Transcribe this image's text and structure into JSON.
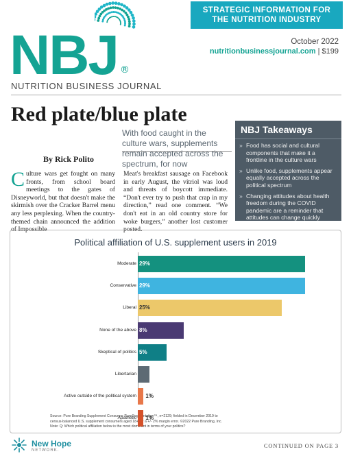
{
  "masthead": {
    "logo_text": "NBJ",
    "registered_mark": "®",
    "publication_name": "NUTRITION BUSINESS JOURNAL",
    "banner_line1": "STRATEGIC INFORMATION FOR",
    "banner_line2": "THE NUTRITION INDUSTRY",
    "issue_date": "October 2022",
    "website": "nutritionbusinessjournal.com",
    "separator": "|",
    "price": "$199",
    "brand_color": "#14a393",
    "banner_color": "#19a8bf"
  },
  "article": {
    "headline": "Red plate/blue plate",
    "deck": "With food caught in the culture wars, supplements remain accepted across the spectrum, for now",
    "byline": "By Rick Polito",
    "drop_cap": "C",
    "col1_text": "ulture wars get fought on many fronts, from school board meetings to the gates of Disneyworld, but that doesn't make the skirmish over the Cracker Barrel menu any less perplexing. When the country-themed chain announced the addition of Impossible",
    "col2_text": "Meat's breakfast sausage on Facebook in early August, the vitriol was loud and threats of boycott immediate. “Don't ever try to push that crap in my direction,” read one comment. “We don't eat in an old country store for woke burgers,” another lost customer posted."
  },
  "takeaways": {
    "title": "NBJ Takeaways",
    "bullet_glyph": "»",
    "items": [
      "Food has social and cultural components that make it a frontline in the culture wars",
      "Unlike food, supplements appear equally accepted across the political spectrum",
      "Changing attitudes about health freedom during the COVID pandemic are a reminder that attitudes can change quickly"
    ],
    "background_color": "#4e5b66"
  },
  "chart_data": {
    "type": "bar",
    "orientation": "horizontal",
    "title": "Political affiliation of U.S. supplement users in 2019",
    "categories": [
      "Moderate",
      "Conservative",
      "Liberal",
      "None of the above",
      "Skeptical of politics",
      "Libertarian",
      "Active outside of the political system",
      "Apathetic"
    ],
    "values": [
      29,
      29,
      25,
      8,
      5,
      2,
      1,
      1
    ],
    "value_labels": [
      "29%",
      "29%",
      "25%",
      "8%",
      "5%",
      "2%",
      "1%",
      "1%"
    ],
    "colors": [
      "#14917f",
      "#3fb4e0",
      "#ecc86a",
      "#4a3a73",
      "#0f7f86",
      "#5d6a74",
      "#e8784a",
      "#d4512a"
    ],
    "value_label_colors": [
      "#ffffff",
      "#ffffff",
      "#333333",
      "#ffffff",
      "#ffffff",
      "#ffffff",
      "#222222",
      "#222222"
    ],
    "xlim": [
      0,
      29
    ],
    "grid": false,
    "source_line1": "Source: Pure Branding Supplement Consumer PureSegmentation™, n=2129; fielded in December 2019 to",
    "source_line2": "census-balanced U.S. supplement consumers aged 18+ for a +/- 2% margin error. ©2022 Pure Branding, Inc.",
    "source_line3": "Note: Q: Which political affiliation below is the most dominant in terms of your politics?"
  },
  "footer": {
    "network_name": "New Hope",
    "network_sub": "NETWORK.",
    "continued": "CONTINUED ON PAGE 3"
  }
}
